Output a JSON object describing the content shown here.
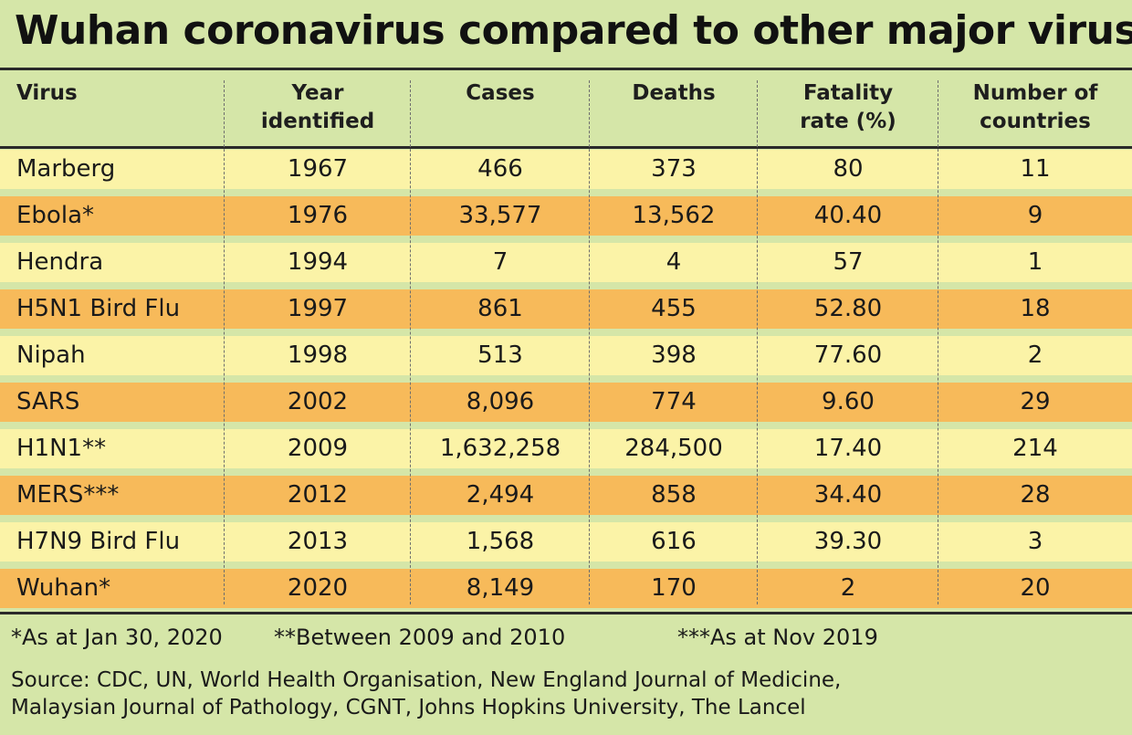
{
  "title": "Wuhan coronavirus compared to other major viruses",
  "table": {
    "headers": [
      [
        "Virus"
      ],
      [
        "Year",
        "identified"
      ],
      [
        "Cases"
      ],
      [
        "Deaths"
      ],
      [
        "Fatality",
        "rate (%)"
      ],
      [
        "Number of",
        "countries"
      ]
    ],
    "rows": [
      [
        "Marberg",
        "1967",
        "466",
        "373",
        "80",
        "11"
      ],
      [
        "Ebola*",
        "1976",
        "33,577",
        "13,562",
        "40.40",
        "9"
      ],
      [
        "Hendra",
        "1994",
        "7",
        "4",
        "57",
        "1"
      ],
      [
        "H5N1 Bird Flu",
        "1997",
        "861",
        "455",
        "52.80",
        "18"
      ],
      [
        "Nipah",
        "1998",
        "513",
        "398",
        "77.60",
        "2"
      ],
      [
        "SARS",
        "2002",
        "8,096",
        "774",
        "9.60",
        "29"
      ],
      [
        "H1N1**",
        "2009",
        "1,632,258",
        "284,500",
        "17.40",
        "214"
      ],
      [
        "MERS***",
        "2012",
        "2,494",
        "858",
        "34.40",
        "28"
      ],
      [
        "H7N9 Bird Flu",
        "2013",
        "1,568",
        "616",
        "39.30",
        "3"
      ],
      [
        "Wuhan*",
        "2020",
        "8,149",
        "170",
        "2",
        "20"
      ]
    ]
  },
  "footnotes": [
    "*As at Jan 30, 2020",
    "**Between 2009 and 2010",
    "***As at Nov 2019"
  ],
  "source": [
    "Source: CDC, UN, World Health Organisation, New England Journal of Medicine,",
    "Malaysian Journal of Pathology, CGNT, Johns Hopkins University, The Lancel"
  ],
  "colors": {
    "background": "#d5e6a8",
    "row_light": "#fbf3a7",
    "row_dark": "#f7ba5a",
    "rule": "#2a2a2a"
  }
}
